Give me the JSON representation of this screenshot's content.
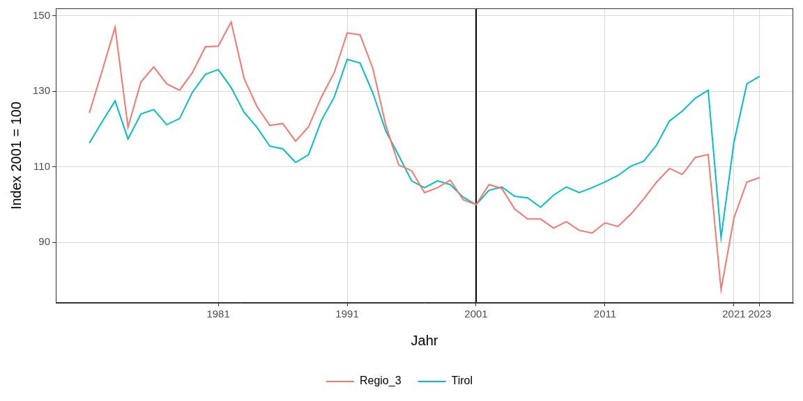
{
  "chart_data": {
    "type": "line",
    "x_label": "Jahr",
    "y_label": "Index 2001 = 100",
    "x": [
      1971,
      1972,
      1973,
      1974,
      1975,
      1976,
      1977,
      1978,
      1979,
      1980,
      1981,
      1982,
      1983,
      1984,
      1985,
      1986,
      1987,
      1988,
      1989,
      1990,
      1991,
      1992,
      1993,
      1994,
      1995,
      1996,
      1997,
      1998,
      1999,
      2000,
      2001,
      2002,
      2003,
      2004,
      2005,
      2006,
      2007,
      2008,
      2009,
      2010,
      2011,
      2012,
      2013,
      2014,
      2015,
      2016,
      2017,
      2018,
      2019,
      2020,
      2021,
      2022,
      2023
    ],
    "series": [
      {
        "name": "Regio_3",
        "color": "#F8766D",
        "values": [
          124.3,
          135.5,
          147,
          120.5,
          132.5,
          136.5,
          132,
          130.3,
          135,
          141.8,
          142,
          148.4,
          133.5,
          126,
          121,
          121.5,
          116.8,
          120.6,
          128.5,
          135,
          145.5,
          145,
          136,
          121,
          110.5,
          109,
          103.2,
          104.5,
          106.5,
          101.3,
          100,
          105.3,
          104.3,
          98.8,
          96.2,
          96.2,
          93.8,
          95.5,
          93.2,
          92.5,
          95.2,
          94.2,
          97.5,
          101.5,
          106,
          109.6,
          108,
          112.5,
          113.3,
          77.5,
          96.5,
          106,
          107.2
        ]
      },
      {
        "name": "Tirol",
        "color": "#00BFC4",
        "values": [
          116.3,
          122,
          127.5,
          117.4,
          124,
          125.2,
          121.2,
          122.8,
          129.8,
          134.5,
          135.8,
          131,
          124.5,
          120.5,
          115.5,
          114.8,
          111.2,
          113.2,
          122.3,
          128.5,
          138.5,
          137.5,
          129.5,
          119.5,
          113,
          106.3,
          104.5,
          106.3,
          105.3,
          102,
          100,
          103.8,
          104.7,
          102.2,
          101.8,
          99.3,
          102.5,
          104.7,
          103.2,
          104.5,
          106,
          107.7,
          110.2,
          111.5,
          115.8,
          122.2,
          124.8,
          128.2,
          130.3,
          91.3,
          116.5,
          132,
          134
        ]
      }
    ],
    "xlim": [
      1968.4,
      2025.6
    ],
    "xticks": [
      1981,
      1991,
      2001,
      2011,
      2021,
      2023
    ],
    "ylim": [
      74,
      152
    ],
    "yticks": [
      90,
      110,
      130,
      150
    ],
    "annotations": [
      {
        "x": 2001
      }
    ],
    "grid": true,
    "legend": "bottom"
  }
}
